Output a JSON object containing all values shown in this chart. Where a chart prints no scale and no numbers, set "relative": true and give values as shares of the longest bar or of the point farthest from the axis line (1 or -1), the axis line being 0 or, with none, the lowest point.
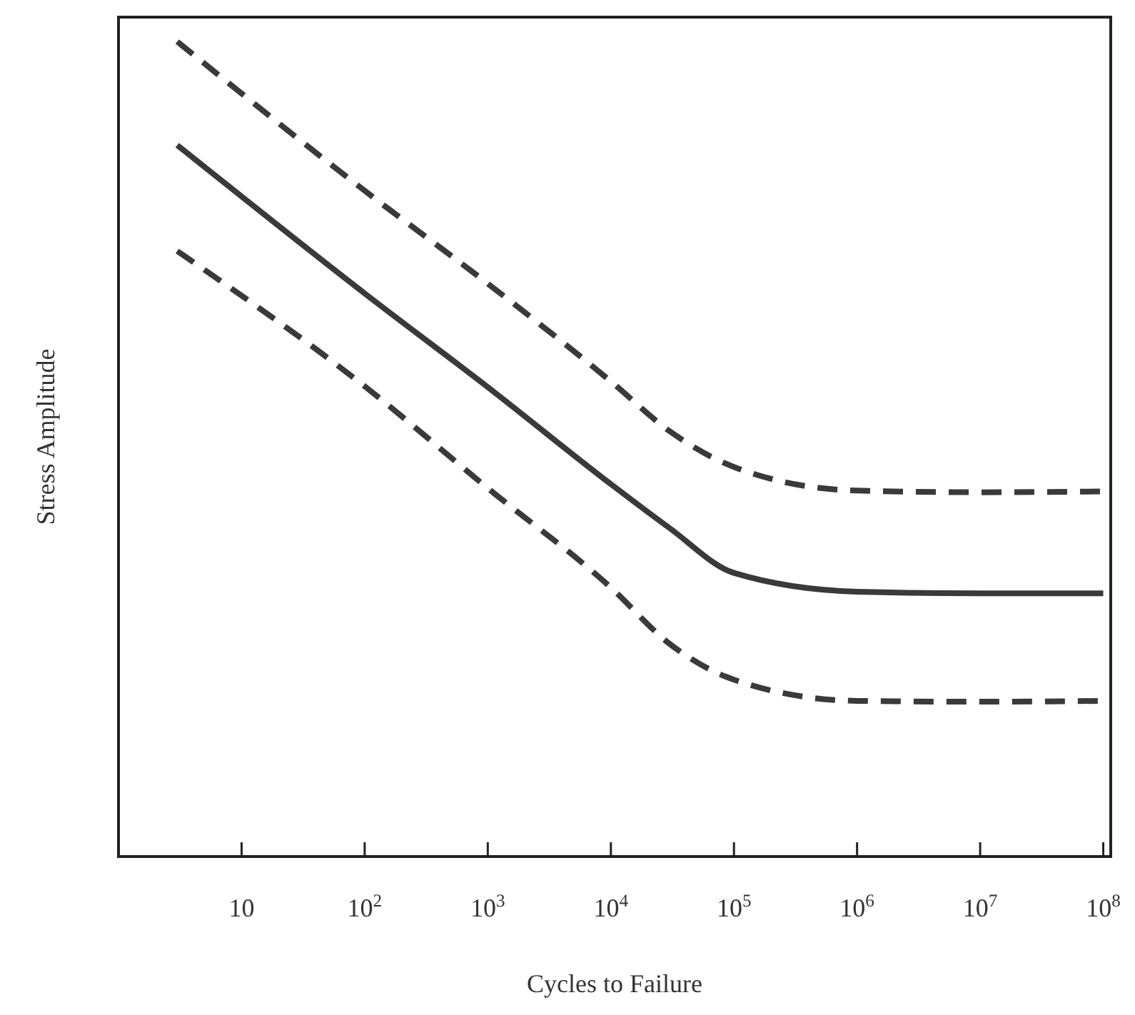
{
  "chart_data": {
    "type": "line",
    "xlabel": "Cycles to Failure",
    "ylabel": "Stress Amplitude",
    "log": "x",
    "relative": true,
    "xlim": [
      1,
      115000000
    ],
    "xticks": [
      10,
      {
        "value": 100,
        "label": "10$^{2}$"
      },
      {
        "value": 1000,
        "label": "10$^{3}$"
      },
      {
        "value": 10000,
        "label": "10$^{4}$"
      },
      {
        "value": 100000,
        "label": "10$^{5}$"
      },
      {
        "value": 1000000,
        "label": "10$^{6}$"
      },
      {
        "value": 10000000,
        "label": "10$^{7}$"
      },
      {
        "value": 100000000,
        "label": "10$^{8}$"
      }
    ],
    "x": [
      3,
      100,
      1000,
      10000,
      30000,
      100000,
      1000000,
      10000000,
      100000000
    ],
    "grid": false,
    "series": [
      {
        "color": "#3a3a3a",
        "line_style": "dashed",
        "values": [
          1.0,
          0.817,
          0.703,
          0.583,
          0.522,
          0.478,
          0.449,
          0.447,
          0.448
        ]
      },
      {
        "color": "#3a3a3a",
        "line_style": "solid",
        "values": [
          0.873,
          0.691,
          0.576,
          0.457,
          0.403,
          0.348,
          0.325,
          0.323,
          0.323
        ]
      },
      {
        "color": "#3a3a3a",
        "line_style": "dashed",
        "values": [
          0.743,
          0.577,
          0.452,
          0.33,
          0.261,
          0.217,
          0.191,
          0.19,
          0.191
        ]
      }
    ]
  }
}
